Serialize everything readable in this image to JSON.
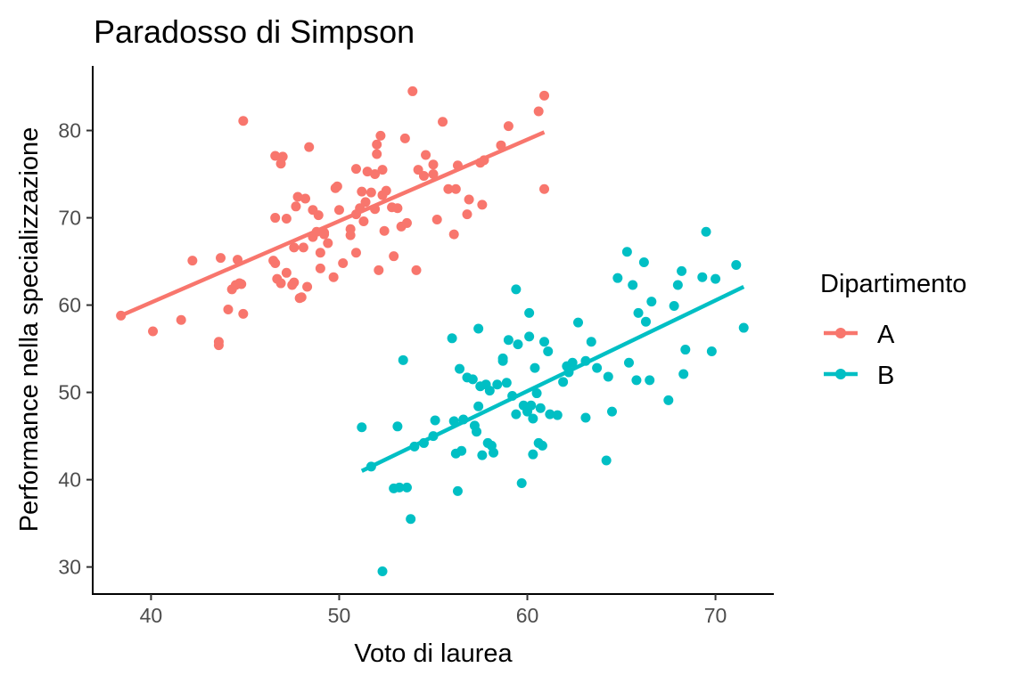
{
  "chart_data": {
    "type": "scatter",
    "title": "Paradosso di Simpson",
    "xlabel": "Voto di laurea",
    "ylabel": "Performance nella specializzazione",
    "xlim": [
      36.9,
      73.1
    ],
    "ylim": [
      26.9,
      87.4
    ],
    "x_ticks": [
      40,
      50,
      60,
      70
    ],
    "y_ticks": [
      30,
      40,
      50,
      60,
      70,
      80
    ],
    "grid": false,
    "legend": {
      "title": "Dipartimento",
      "position": "right"
    },
    "series": [
      {
        "name": "A",
        "color": "#F8766D",
        "trend": [
          [
            38.4,
            58.8
          ],
          [
            60.9,
            79.8
          ]
        ],
        "points": [
          [
            38.4,
            58.8
          ],
          [
            40.1,
            57.0
          ],
          [
            41.6,
            58.3
          ],
          [
            42.2,
            65.1
          ],
          [
            43.6,
            55.8
          ],
          [
            43.6,
            55.4
          ],
          [
            43.7,
            65.4
          ],
          [
            44.1,
            59.5
          ],
          [
            44.3,
            61.8
          ],
          [
            44.5,
            62.3
          ],
          [
            44.6,
            65.2
          ],
          [
            44.7,
            62.5
          ],
          [
            44.8,
            62.4
          ],
          [
            44.9,
            59.0
          ],
          [
            44.9,
            81.1
          ],
          [
            46.5,
            65.1
          ],
          [
            46.6,
            64.8
          ],
          [
            46.6,
            77.1
          ],
          [
            46.6,
            70.0
          ],
          [
            46.7,
            63.0
          ],
          [
            46.9,
            62.5
          ],
          [
            46.9,
            76.2
          ],
          [
            47.0,
            77.0
          ],
          [
            47.2,
            69.9
          ],
          [
            47.2,
            63.7
          ],
          [
            47.5,
            62.3
          ],
          [
            47.6,
            66.6
          ],
          [
            47.6,
            62.6
          ],
          [
            47.7,
            71.3
          ],
          [
            47.8,
            72.4
          ],
          [
            47.9,
            60.8
          ],
          [
            48.0,
            60.9
          ],
          [
            48.1,
            66.6
          ],
          [
            48.2,
            72.2
          ],
          [
            48.3,
            62.1
          ],
          [
            48.4,
            78.1
          ],
          [
            48.6,
            70.9
          ],
          [
            48.6,
            67.8
          ],
          [
            48.8,
            68.4
          ],
          [
            48.9,
            70.3
          ],
          [
            49.0,
            66.0
          ],
          [
            49.0,
            64.2
          ],
          [
            49.2,
            68.3
          ],
          [
            49.2,
            68.1
          ],
          [
            49.4,
            67.1
          ],
          [
            49.7,
            63.2
          ],
          [
            49.8,
            73.4
          ],
          [
            49.9,
            73.6
          ],
          [
            50.0,
            70.9
          ],
          [
            50.2,
            64.8
          ],
          [
            50.6,
            68.7
          ],
          [
            50.6,
            68.0
          ],
          [
            50.9,
            66.0
          ],
          [
            50.9,
            75.6
          ],
          [
            50.9,
            70.4
          ],
          [
            51.1,
            71.1
          ],
          [
            51.2,
            73.0
          ],
          [
            51.3,
            69.6
          ],
          [
            51.4,
            71.8
          ],
          [
            51.5,
            75.3
          ],
          [
            51.7,
            72.9
          ],
          [
            51.9,
            71.0
          ],
          [
            51.9,
            75.0
          ],
          [
            52.0,
            77.3
          ],
          [
            52.0,
            78.4
          ],
          [
            52.1,
            64.0
          ],
          [
            52.2,
            79.4
          ],
          [
            52.3,
            72.6
          ],
          [
            52.3,
            75.5
          ],
          [
            52.4,
            68.5
          ],
          [
            52.5,
            73.1
          ],
          [
            52.8,
            71.2
          ],
          [
            52.9,
            65.6
          ],
          [
            53.1,
            71.1
          ],
          [
            53.3,
            69.0
          ],
          [
            53.5,
            79.1
          ],
          [
            53.6,
            69.4
          ],
          [
            53.9,
            84.5
          ],
          [
            54.1,
            64.0
          ],
          [
            54.2,
            75.5
          ],
          [
            54.5,
            74.8
          ],
          [
            54.6,
            77.2
          ],
          [
            55.0,
            76.1
          ],
          [
            55.0,
            75.0
          ],
          [
            55.2,
            69.8
          ],
          [
            55.5,
            81.0
          ],
          [
            55.8,
            73.3
          ],
          [
            56.1,
            68.1
          ],
          [
            56.2,
            73.3
          ],
          [
            56.3,
            76.0
          ],
          [
            56.8,
            70.4
          ],
          [
            56.9,
            72.1
          ],
          [
            57.5,
            76.3
          ],
          [
            57.6,
            71.5
          ],
          [
            57.7,
            76.6
          ],
          [
            58.6,
            78.3
          ],
          [
            59.0,
            80.5
          ],
          [
            60.6,
            82.2
          ],
          [
            60.9,
            73.3
          ],
          [
            60.9,
            84.0
          ]
        ]
      },
      {
        "name": "B",
        "color": "#00BFC4",
        "trend": [
          [
            51.2,
            41.0
          ],
          [
            71.5,
            62.1
          ]
        ],
        "points": [
          [
            51.2,
            46.0
          ],
          [
            51.7,
            41.5
          ],
          [
            52.3,
            29.5
          ],
          [
            52.9,
            39.0
          ],
          [
            53.1,
            46.1
          ],
          [
            53.2,
            39.1
          ],
          [
            53.4,
            53.7
          ],
          [
            53.6,
            39.1
          ],
          [
            53.8,
            35.5
          ],
          [
            54.0,
            43.8
          ],
          [
            54.5,
            44.2
          ],
          [
            55.0,
            45.0
          ],
          [
            55.1,
            46.8
          ],
          [
            56.0,
            56.2
          ],
          [
            56.1,
            46.7
          ],
          [
            56.2,
            43.0
          ],
          [
            56.3,
            38.7
          ],
          [
            56.4,
            52.7
          ],
          [
            56.5,
            43.3
          ],
          [
            56.6,
            46.9
          ],
          [
            56.8,
            51.7
          ],
          [
            57.1,
            51.5
          ],
          [
            57.2,
            46.2
          ],
          [
            57.3,
            45.5
          ],
          [
            57.4,
            48.4
          ],
          [
            57.4,
            57.3
          ],
          [
            57.5,
            50.7
          ],
          [
            57.6,
            42.8
          ],
          [
            57.8,
            50.9
          ],
          [
            57.9,
            44.2
          ],
          [
            58.0,
            50.2
          ],
          [
            58.1,
            43.9
          ],
          [
            58.2,
            43.1
          ],
          [
            58.4,
            50.9
          ],
          [
            58.7,
            53.9
          ],
          [
            58.7,
            53.6
          ],
          [
            58.9,
            51.1
          ],
          [
            59.0,
            56.0
          ],
          [
            59.2,
            49.6
          ],
          [
            59.4,
            47.5
          ],
          [
            59.4,
            61.8
          ],
          [
            59.5,
            55.5
          ],
          [
            59.7,
            39.6
          ],
          [
            59.8,
            48.5
          ],
          [
            60.0,
            47.8
          ],
          [
            60.1,
            56.4
          ],
          [
            60.1,
            59.1
          ],
          [
            60.2,
            48.5
          ],
          [
            60.3,
            42.9
          ],
          [
            60.3,
            47.0
          ],
          [
            60.4,
            52.8
          ],
          [
            60.5,
            49.9
          ],
          [
            60.6,
            44.2
          ],
          [
            60.7,
            48.2
          ],
          [
            60.8,
            43.9
          ],
          [
            60.9,
            55.8
          ],
          [
            61.1,
            54.7
          ],
          [
            61.2,
            47.5
          ],
          [
            61.6,
            47.4
          ],
          [
            61.9,
            51.2
          ],
          [
            62.1,
            53.0
          ],
          [
            62.2,
            52.3
          ],
          [
            62.4,
            53.4
          ],
          [
            62.7,
            58.0
          ],
          [
            63.1,
            53.6
          ],
          [
            63.1,
            47.1
          ],
          [
            63.4,
            55.8
          ],
          [
            63.7,
            52.8
          ],
          [
            64.2,
            42.2
          ],
          [
            64.3,
            51.8
          ],
          [
            64.5,
            47.8
          ],
          [
            64.8,
            63.1
          ],
          [
            65.3,
            66.1
          ],
          [
            65.4,
            53.4
          ],
          [
            65.6,
            62.3
          ],
          [
            65.8,
            51.4
          ],
          [
            65.9,
            59.1
          ],
          [
            66.2,
            64.9
          ],
          [
            66.3,
            58.1
          ],
          [
            66.5,
            51.4
          ],
          [
            66.6,
            60.4
          ],
          [
            67.5,
            49.1
          ],
          [
            67.8,
            59.9
          ],
          [
            68.0,
            62.3
          ],
          [
            68.2,
            63.9
          ],
          [
            68.3,
            52.1
          ],
          [
            68.4,
            54.9
          ],
          [
            69.3,
            63.2
          ],
          [
            69.5,
            68.4
          ],
          [
            69.8,
            54.7
          ],
          [
            70.0,
            63.0
          ],
          [
            71.1,
            64.6
          ],
          [
            71.5,
            57.4
          ]
        ]
      }
    ]
  }
}
